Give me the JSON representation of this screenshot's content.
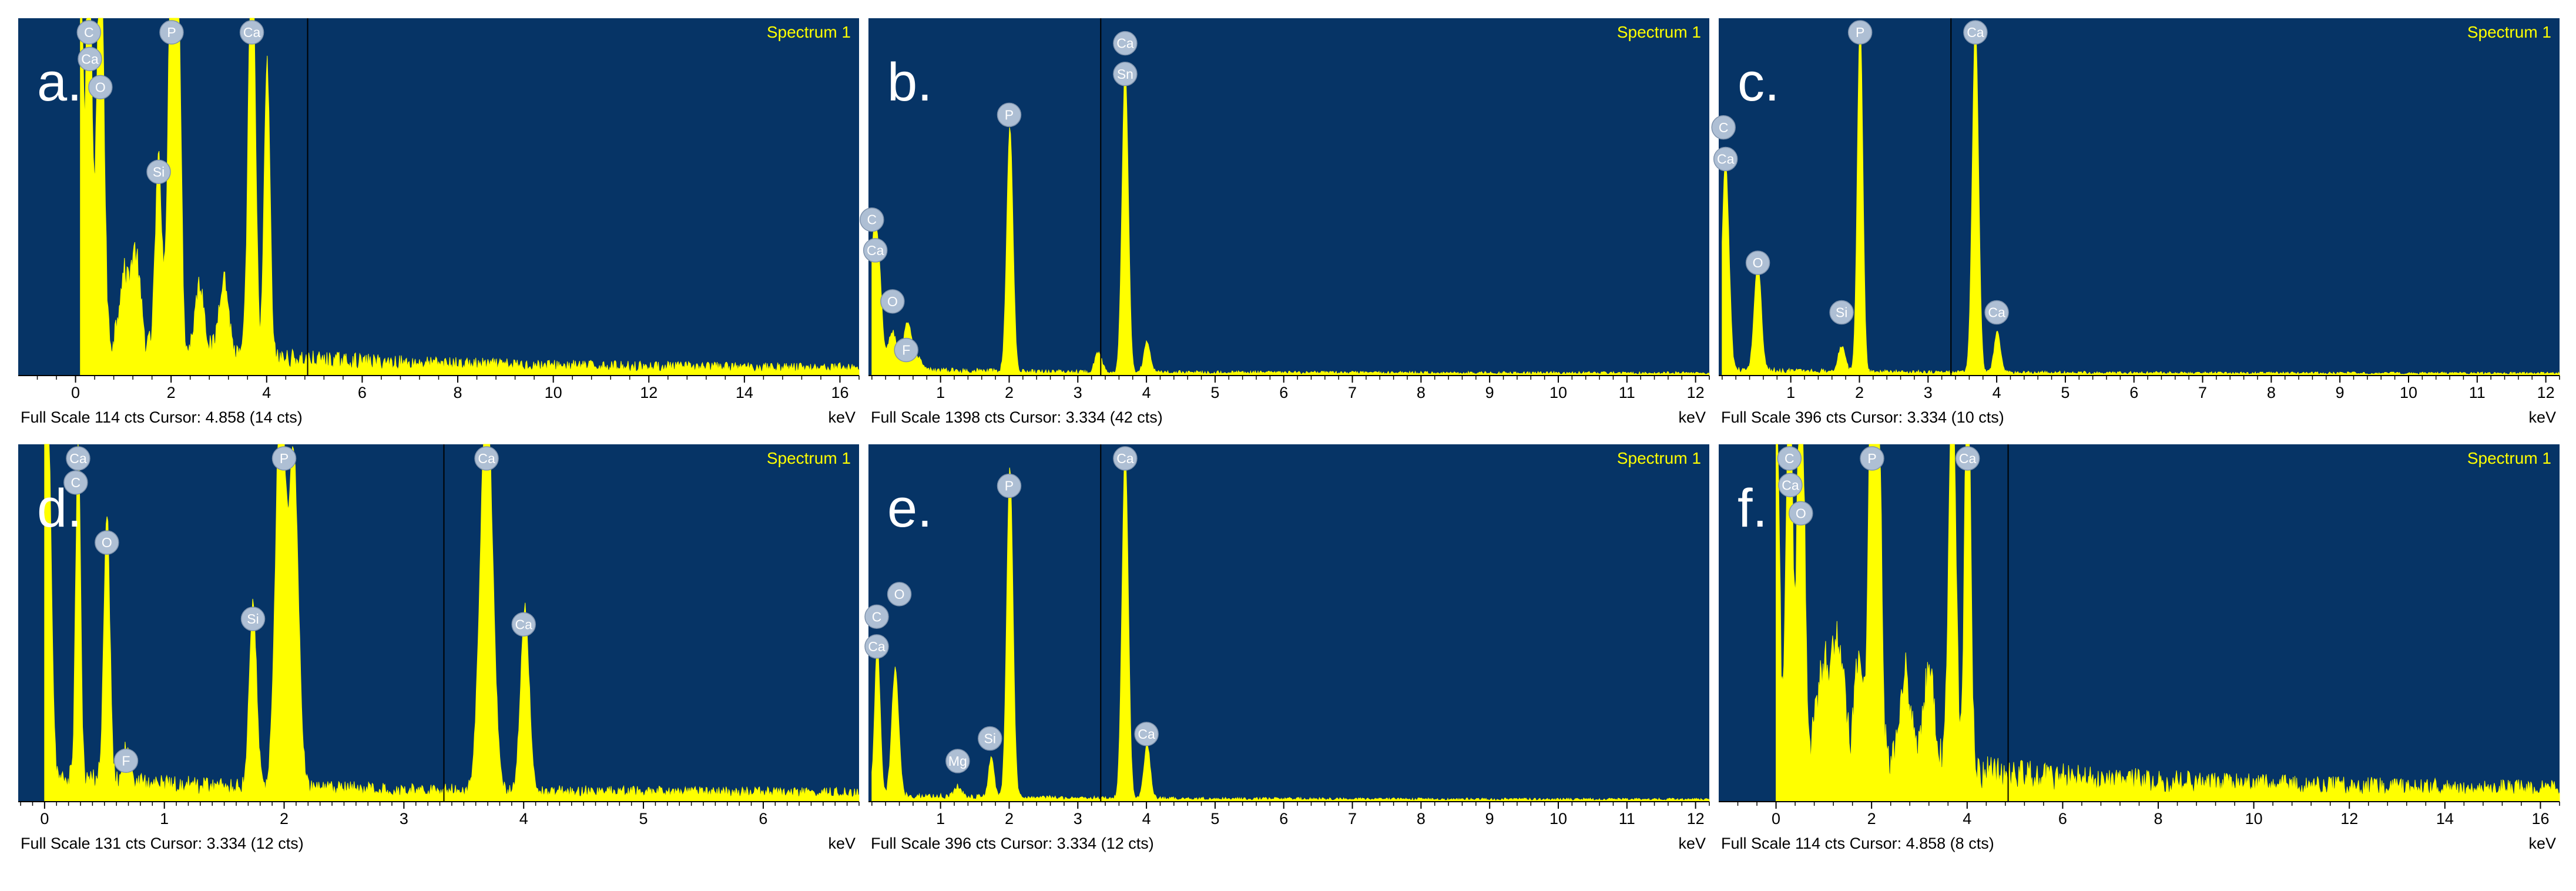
{
  "colors": {
    "plot_background": "#063466",
    "spectrum_fill": "#ffff00",
    "spectrum_title": "#ffff00",
    "cursor_line": "#000000",
    "element_marker_fill": "#aebfd4",
    "element_marker_text": "#ffffff",
    "axis_strip_background": "#ffffff",
    "axis_text": "#000000"
  },
  "chart_data": [
    {
      "type": "area",
      "panel_label": "a.",
      "spectrum_title": "Spectrum 1",
      "xlabel": "keV",
      "xlim": [
        -1.2,
        16.4
      ],
      "x_ticks": [
        0,
        2,
        4,
        6,
        8,
        10,
        12,
        14,
        16
      ],
      "ylim": [
        0,
        114
      ],
      "footer": "Full Scale 114 cts Cursor: 4.858  (14 cts)",
      "cursor_kev": 4.858,
      "baseline_y": 3,
      "noise": {
        "start": 0.1,
        "end": 16.4,
        "level": 10,
        "decay": 4.5
      },
      "peaks": [
        {
          "x": 0.1,
          "y": 140,
          "w": 0.05
        },
        {
          "x": 0.28,
          "y": 140,
          "w": 0.06
        },
        {
          "x": 0.52,
          "y": 140,
          "w": 0.07
        },
        {
          "x": 1.0,
          "y": 22,
          "w": 0.1
        },
        {
          "x": 1.25,
          "y": 30,
          "w": 0.1
        },
        {
          "x": 1.74,
          "y": 60,
          "w": 0.07
        },
        {
          "x": 2.01,
          "y": 140,
          "w": 0.07
        },
        {
          "x": 2.15,
          "y": 112,
          "w": 0.06
        },
        {
          "x": 2.6,
          "y": 22,
          "w": 0.1
        },
        {
          "x": 3.1,
          "y": 25,
          "w": 0.1
        },
        {
          "x": 3.69,
          "y": 140,
          "w": 0.07
        },
        {
          "x": 4.01,
          "y": 94,
          "w": 0.06
        }
      ],
      "markers": [
        {
          "label": "C",
          "x": 0.28,
          "y": 113
        },
        {
          "label": "Ca",
          "x": 0.3,
          "y": 101
        },
        {
          "label": "O",
          "x": 0.52,
          "y": 92
        },
        {
          "label": "Si",
          "x": 1.74,
          "y": 65
        },
        {
          "label": "P",
          "x": 2.01,
          "y": 113
        },
        {
          "label": "Ca",
          "x": 3.69,
          "y": 113
        }
      ]
    },
    {
      "type": "area",
      "panel_label": "b.",
      "spectrum_title": "Spectrum 1",
      "xlabel": "keV",
      "xlim": [
        -0.05,
        12.2
      ],
      "x_ticks": [
        1,
        2,
        3,
        4,
        5,
        6,
        7,
        8,
        9,
        10,
        11,
        12
      ],
      "ylim": [
        0,
        1398
      ],
      "footer": "Full Scale 1398 cts Cursor: 3.334  (42 cts)",
      "cursor_kev": 3.334,
      "baseline_y": 12,
      "noise": {
        "start": 0.0,
        "end": 12.2,
        "level": 18,
        "decay": 3
      },
      "peaks": [
        {
          "x": 0.02,
          "y": 440,
          "w": 0.05
        },
        {
          "x": 0.1,
          "y": 340,
          "w": 0.05
        },
        {
          "x": 0.3,
          "y": 150,
          "w": 0.06
        },
        {
          "x": 0.52,
          "y": 190,
          "w": 0.06
        },
        {
          "x": 0.68,
          "y": 40,
          "w": 0.05
        },
        {
          "x": 2.01,
          "y": 950,
          "w": 0.045
        },
        {
          "x": 3.3,
          "y": 75,
          "w": 0.05
        },
        {
          "x": 3.69,
          "y": 1200,
          "w": 0.045
        },
        {
          "x": 4.01,
          "y": 120,
          "w": 0.045
        }
      ],
      "markers": [
        {
          "label": "C",
          "x": 0.0,
          "y": 610
        },
        {
          "label": "Ca",
          "x": 0.05,
          "y": 490
        },
        {
          "label": "O",
          "x": 0.3,
          "y": 290
        },
        {
          "label": "F",
          "x": 0.5,
          "y": 100
        },
        {
          "label": "P",
          "x": 2.0,
          "y": 1020
        },
        {
          "label": "Sn",
          "x": 3.69,
          "y": 1180
        },
        {
          "label": "Ca",
          "x": 3.69,
          "y": 1300
        }
      ]
    },
    {
      "type": "area",
      "panel_label": "c.",
      "spectrum_title": "Spectrum 1",
      "xlabel": "keV",
      "xlim": [
        -0.05,
        12.2
      ],
      "x_ticks": [
        1,
        2,
        3,
        4,
        5,
        6,
        7,
        8,
        9,
        10,
        11,
        12
      ],
      "ylim": [
        0,
        396
      ],
      "footer": "Full Scale 396 cts Cursor: 3.334  (10 cts)",
      "cursor_kev": 3.334,
      "baseline_y": 3,
      "noise": {
        "start": 0.0,
        "end": 12.2,
        "level": 5,
        "decay": 3
      },
      "peaks": [
        {
          "x": 0.05,
          "y": 230,
          "w": 0.05
        },
        {
          "x": 0.52,
          "y": 120,
          "w": 0.05
        },
        {
          "x": 1.74,
          "y": 28,
          "w": 0.05
        },
        {
          "x": 2.01,
          "y": 388,
          "w": 0.04
        },
        {
          "x": 3.69,
          "y": 388,
          "w": 0.045
        },
        {
          "x": 4.01,
          "y": 45,
          "w": 0.045
        }
      ],
      "markers": [
        {
          "label": "C",
          "x": 0.02,
          "y": 275
        },
        {
          "label": "Ca",
          "x": 0.05,
          "y": 240
        },
        {
          "label": "O",
          "x": 0.52,
          "y": 125
        },
        {
          "label": "Si",
          "x": 1.74,
          "y": 70
        },
        {
          "label": "P",
          "x": 2.01,
          "y": 383
        },
        {
          "label": "Ca",
          "x": 3.69,
          "y": 383
        },
        {
          "label": "Ca",
          "x": 4.0,
          "y": 70
        }
      ]
    },
    {
      "type": "area",
      "panel_label": "d.",
      "spectrum_title": "Spectrum 1",
      "xlabel": "keV",
      "xlim": [
        -0.22,
        6.8
      ],
      "x_ticks": [
        0,
        1,
        2,
        3,
        4,
        5,
        6
      ],
      "ylim": [
        0,
        131
      ],
      "footer": "Full Scale 131 cts Cursor: 3.334  (12 cts)",
      "cursor_kev": 3.334,
      "baseline_y": 4,
      "noise": {
        "start": 0.0,
        "end": 6.8,
        "level": 7,
        "decay": 2
      },
      "peaks": [
        {
          "x": 0.02,
          "y": 160,
          "w": 0.03
        },
        {
          "x": 0.28,
          "y": 125,
          "w": 0.02
        },
        {
          "x": 0.52,
          "y": 100,
          "w": 0.025
        },
        {
          "x": 0.68,
          "y": 12,
          "w": 0.03
        },
        {
          "x": 1.74,
          "y": 68,
          "w": 0.03
        },
        {
          "x": 1.97,
          "y": 150,
          "w": 0.04
        },
        {
          "x": 2.08,
          "y": 120,
          "w": 0.04
        },
        {
          "x": 3.69,
          "y": 150,
          "w": 0.05
        },
        {
          "x": 4.01,
          "y": 68,
          "w": 0.035
        }
      ],
      "markers": [
        {
          "label": "Ca",
          "x": 0.28,
          "y": 128
        },
        {
          "label": "C",
          "x": 0.26,
          "y": 117
        },
        {
          "label": "O",
          "x": 0.52,
          "y": 95
        },
        {
          "label": "F",
          "x": 0.68,
          "y": 15
        },
        {
          "label": "Si",
          "x": 1.74,
          "y": 67
        },
        {
          "label": "P",
          "x": 2.0,
          "y": 128
        },
        {
          "label": "Ca",
          "x": 3.69,
          "y": 128
        },
        {
          "label": "Ca",
          "x": 4.0,
          "y": 65
        }
      ]
    },
    {
      "type": "area",
      "panel_label": "e.",
      "spectrum_title": "Spectrum 1",
      "xlabel": "keV",
      "xlim": [
        -0.05,
        12.2
      ],
      "x_ticks": [
        1,
        2,
        3,
        4,
        5,
        6,
        7,
        8,
        9,
        10,
        11,
        12
      ],
      "ylim": [
        0,
        396
      ],
      "footer": "Full Scale 396 cts Cursor: 3.334  (12 cts)",
      "cursor_kev": 3.334,
      "baseline_y": 3,
      "noise": {
        "start": 0.0,
        "end": 12.2,
        "level": 6,
        "decay": 3
      },
      "peaks": [
        {
          "x": 0.08,
          "y": 165,
          "w": 0.04
        },
        {
          "x": 0.34,
          "y": 140,
          "w": 0.05
        },
        {
          "x": 1.25,
          "y": 12,
          "w": 0.05
        },
        {
          "x": 1.74,
          "y": 45,
          "w": 0.04
        },
        {
          "x": 2.01,
          "y": 365,
          "w": 0.045
        },
        {
          "x": 3.69,
          "y": 388,
          "w": 0.045
        },
        {
          "x": 4.01,
          "y": 60,
          "w": 0.045
        }
      ],
      "markers": [
        {
          "label": "O",
          "x": 0.4,
          "y": 230
        },
        {
          "label": "C",
          "x": 0.07,
          "y": 205
        },
        {
          "label": "Ca",
          "x": 0.07,
          "y": 172
        },
        {
          "label": "Mg",
          "x": 1.25,
          "y": 45
        },
        {
          "label": "Si",
          "x": 1.72,
          "y": 70
        },
        {
          "label": "P",
          "x": 2.0,
          "y": 350
        },
        {
          "label": "Ca",
          "x": 3.69,
          "y": 383
        },
        {
          "label": "Ca",
          "x": 4.0,
          "y": 75
        }
      ]
    },
    {
      "type": "area",
      "panel_label": "f.",
      "spectrum_title": "Spectrum 1",
      "xlabel": "keV",
      "xlim": [
        -1.2,
        16.4
      ],
      "x_ticks": [
        0,
        2,
        4,
        6,
        8,
        10,
        12,
        14,
        16
      ],
      "ylim": [
        0,
        114
      ],
      "footer": "Full Scale 114 cts Cursor: 4.858  (8 cts)",
      "cursor_kev": 4.858,
      "baseline_y": 5,
      "noise": {
        "start": 0.0,
        "end": 16.4,
        "level": 16,
        "decay": 5
      },
      "peaks": [
        {
          "x": 0.02,
          "y": 112,
          "w": 0.05
        },
        {
          "x": 0.28,
          "y": 140,
          "w": 0.06
        },
        {
          "x": 0.52,
          "y": 140,
          "w": 0.07
        },
        {
          "x": 1.0,
          "y": 30,
          "w": 0.12
        },
        {
          "x": 1.3,
          "y": 38,
          "w": 0.12
        },
        {
          "x": 1.74,
          "y": 35,
          "w": 0.08
        },
        {
          "x": 2.01,
          "y": 140,
          "w": 0.07
        },
        {
          "x": 2.15,
          "y": 110,
          "w": 0.06
        },
        {
          "x": 2.7,
          "y": 30,
          "w": 0.12
        },
        {
          "x": 3.2,
          "y": 30,
          "w": 0.12
        },
        {
          "x": 3.69,
          "y": 140,
          "w": 0.07
        },
        {
          "x": 4.01,
          "y": 140,
          "w": 0.06
        }
      ],
      "markers": [
        {
          "label": "C",
          "x": 0.28,
          "y": 113
        },
        {
          "label": "Ca",
          "x": 0.3,
          "y": 101
        },
        {
          "label": "O",
          "x": 0.52,
          "y": 92
        },
        {
          "label": "P",
          "x": 2.01,
          "y": 113
        },
        {
          "label": "Ca",
          "x": 4.01,
          "y": 113
        }
      ]
    }
  ]
}
